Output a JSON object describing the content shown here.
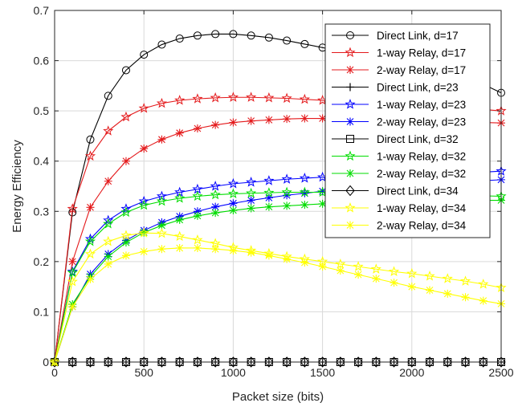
{
  "chart_data": {
    "type": "line",
    "title": "",
    "xlabel": "Packet size (bits)",
    "ylabel": "Energy Efficiency",
    "xlim": [
      0,
      2500
    ],
    "ylim": [
      0,
      0.7
    ],
    "xticks": [
      0,
      500,
      1000,
      1500,
      2000,
      2500
    ],
    "yticks": [
      0,
      0.1,
      0.2,
      0.3,
      0.4,
      0.5,
      0.6,
      0.7
    ],
    "xtick_labels": [
      "0",
      "500",
      "1000",
      "1500",
      "2000",
      "2500"
    ],
    "ytick_labels": [
      "0",
      "0.1",
      "0.2",
      "0.3",
      "0.4",
      "0.5",
      "0.6",
      "0.7"
    ],
    "grid": true,
    "legend_position": "top-right",
    "x": [
      0,
      100,
      200,
      300,
      400,
      500,
      600,
      700,
      800,
      900,
      1000,
      1100,
      1200,
      1300,
      1400,
      1500,
      1600,
      1700,
      1800,
      1900,
      2000,
      2100,
      2200,
      2300,
      2400,
      2500
    ],
    "series": [
      {
        "name": "Direct Link, d=17",
        "color": "#000000",
        "marker": "circle",
        "values": [
          0,
          0.298,
          0.443,
          0.53,
          0.581,
          0.612,
          0.632,
          0.644,
          0.65,
          0.653,
          0.653,
          0.65,
          0.646,
          0.64,
          0.633,
          0.626,
          0.619,
          0.611,
          0.603,
          0.595,
          0.587,
          0.578,
          0.57,
          0.561,
          0.553,
          0.536
        ]
      },
      {
        "name": "1-way Relay, d=17",
        "color": "#e41a1c",
        "marker": "star",
        "values": [
          0,
          0.305,
          0.41,
          0.46,
          0.488,
          0.505,
          0.515,
          0.521,
          0.524,
          0.526,
          0.527,
          0.527,
          0.526,
          0.525,
          0.523,
          0.521,
          0.519,
          0.517,
          0.515,
          0.513,
          0.511,
          0.509,
          0.507,
          0.505,
          0.503,
          0.5
        ]
      },
      {
        "name": "2-way Relay, d=17",
        "color": "#e41a1c",
        "marker": "asterisk",
        "values": [
          0,
          0.2,
          0.308,
          0.36,
          0.4,
          0.425,
          0.443,
          0.456,
          0.465,
          0.472,
          0.477,
          0.48,
          0.482,
          0.484,
          0.485,
          0.485,
          0.485,
          0.484,
          0.483,
          0.482,
          0.481,
          0.48,
          0.479,
          0.478,
          0.477,
          0.476
        ]
      },
      {
        "name": "Direct Link, d=23",
        "color": "#000000",
        "marker": "plus",
        "values": [
          0,
          0,
          0,
          0,
          0,
          0,
          0,
          0,
          0,
          0,
          0,
          0,
          0,
          0,
          0,
          0,
          0,
          0,
          0,
          0,
          0,
          0,
          0,
          0,
          0,
          0
        ]
      },
      {
        "name": "1-way Relay, d=23",
        "color": "#0000ff",
        "marker": "star",
        "values": [
          0,
          0.18,
          0.245,
          0.282,
          0.305,
          0.32,
          0.33,
          0.338,
          0.344,
          0.35,
          0.355,
          0.358,
          0.361,
          0.364,
          0.366,
          0.368,
          0.37,
          0.371,
          0.372,
          0.373,
          0.374,
          0.375,
          0.376,
          0.377,
          0.378,
          0.38
        ]
      },
      {
        "name": "2-way Relay, d=23",
        "color": "#0000ff",
        "marker": "asterisk",
        "values": [
          0,
          0.11,
          0.175,
          0.215,
          0.242,
          0.262,
          0.278,
          0.29,
          0.3,
          0.309,
          0.316,
          0.322,
          0.327,
          0.332,
          0.336,
          0.34,
          0.343,
          0.346,
          0.349,
          0.351,
          0.353,
          0.355,
          0.357,
          0.359,
          0.361,
          0.363
        ]
      },
      {
        "name": "Direct Link, d=32",
        "color": "#000000",
        "marker": "square",
        "values": [
          0,
          0,
          0,
          0,
          0,
          0,
          0,
          0,
          0,
          0,
          0,
          0,
          0,
          0,
          0,
          0,
          0,
          0,
          0,
          0,
          0,
          0,
          0,
          0,
          0,
          0
        ]
      },
      {
        "name": "1-way Relay, d=32",
        "color": "#00dd00",
        "marker": "star",
        "values": [
          0,
          0.178,
          0.24,
          0.275,
          0.298,
          0.312,
          0.32,
          0.326,
          0.33,
          0.333,
          0.335,
          0.336,
          0.337,
          0.338,
          0.338,
          0.338,
          0.338,
          0.337,
          0.337,
          0.336,
          0.335,
          0.334,
          0.333,
          0.332,
          0.331,
          0.33
        ]
      },
      {
        "name": "2-way Relay, d=32",
        "color": "#00dd00",
        "marker": "asterisk",
        "values": [
          0,
          0.115,
          0.17,
          0.21,
          0.238,
          0.258,
          0.272,
          0.283,
          0.291,
          0.297,
          0.302,
          0.306,
          0.309,
          0.311,
          0.313,
          0.315,
          0.316,
          0.317,
          0.318,
          0.319,
          0.32,
          0.32,
          0.321,
          0.321,
          0.322,
          0.322
        ]
      },
      {
        "name": "Direct Link, d=34",
        "color": "#000000",
        "marker": "diamond",
        "values": [
          0,
          0,
          0,
          0,
          0,
          0,
          0,
          0,
          0,
          0,
          0,
          0,
          0,
          0,
          0,
          0,
          0,
          0,
          0,
          0,
          0,
          0,
          0,
          0,
          0,
          0
        ]
      },
      {
        "name": "1-way Relay, d=34",
        "color": "#ffff00",
        "marker": "star",
        "values": [
          0,
          0.16,
          0.215,
          0.24,
          0.252,
          0.257,
          0.256,
          0.25,
          0.243,
          0.236,
          0.228,
          0.222,
          0.216,
          0.21,
          0.205,
          0.2,
          0.195,
          0.19,
          0.185,
          0.18,
          0.176,
          0.171,
          0.166,
          0.161,
          0.155,
          0.148
        ]
      },
      {
        "name": "2-way Relay, d=34",
        "color": "#ffff00",
        "marker": "asterisk",
        "values": [
          0,
          0.11,
          0.165,
          0.195,
          0.212,
          0.22,
          0.225,
          0.227,
          0.227,
          0.225,
          0.222,
          0.218,
          0.212,
          0.205,
          0.198,
          0.19,
          0.182,
          0.174,
          0.166,
          0.158,
          0.15,
          0.143,
          0.136,
          0.129,
          0.122,
          0.116
        ]
      }
    ]
  }
}
